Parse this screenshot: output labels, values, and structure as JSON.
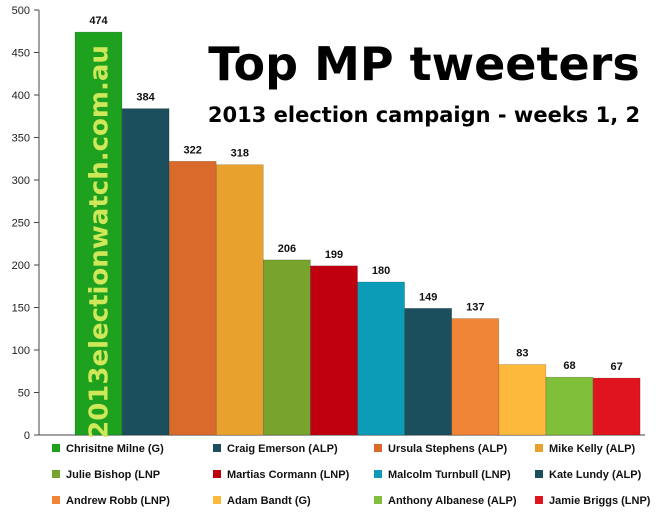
{
  "chart_data": {
    "type": "bar",
    "title": "Top MP tweeters",
    "subtitle": "2013 election campaign - weeks 1, 2",
    "watermark": "2013electionwatch.com.au",
    "xlabel": "",
    "ylabel": "",
    "ylim": [
      0,
      500
    ],
    "yticks": [
      0,
      50,
      100,
      150,
      200,
      250,
      300,
      350,
      400,
      450,
      500
    ],
    "grid": false,
    "legend_position": "bottom",
    "categories": [
      "Chrisitne Milne (G)",
      "Craig Emerson (ALP)",
      "Ursula Stephens (ALP)",
      "Mike Kelly (ALP)",
      "Julie Bishop (LNP",
      "Martias Cormann (LNP)",
      "Malcolm Turnbull (LNP)",
      "Kate Lundy (ALP)",
      "Andrew Robb (LNP)",
      "Adam Bandt (G)",
      "Anthony Albanese (ALP)",
      "Jamie Briggs (LNP)"
    ],
    "values": [
      474,
      384,
      322,
      318,
      206,
      199,
      180,
      149,
      137,
      83,
      68,
      67
    ],
    "colors": [
      "#1ea11e",
      "#1b4f5e",
      "#d96a2b",
      "#e9a12e",
      "#78a32c",
      "#c0000f",
      "#0d9cb8",
      "#1b4f5e",
      "#f08536",
      "#fdb93b",
      "#7fbf3a",
      "#e0141e"
    ]
  }
}
